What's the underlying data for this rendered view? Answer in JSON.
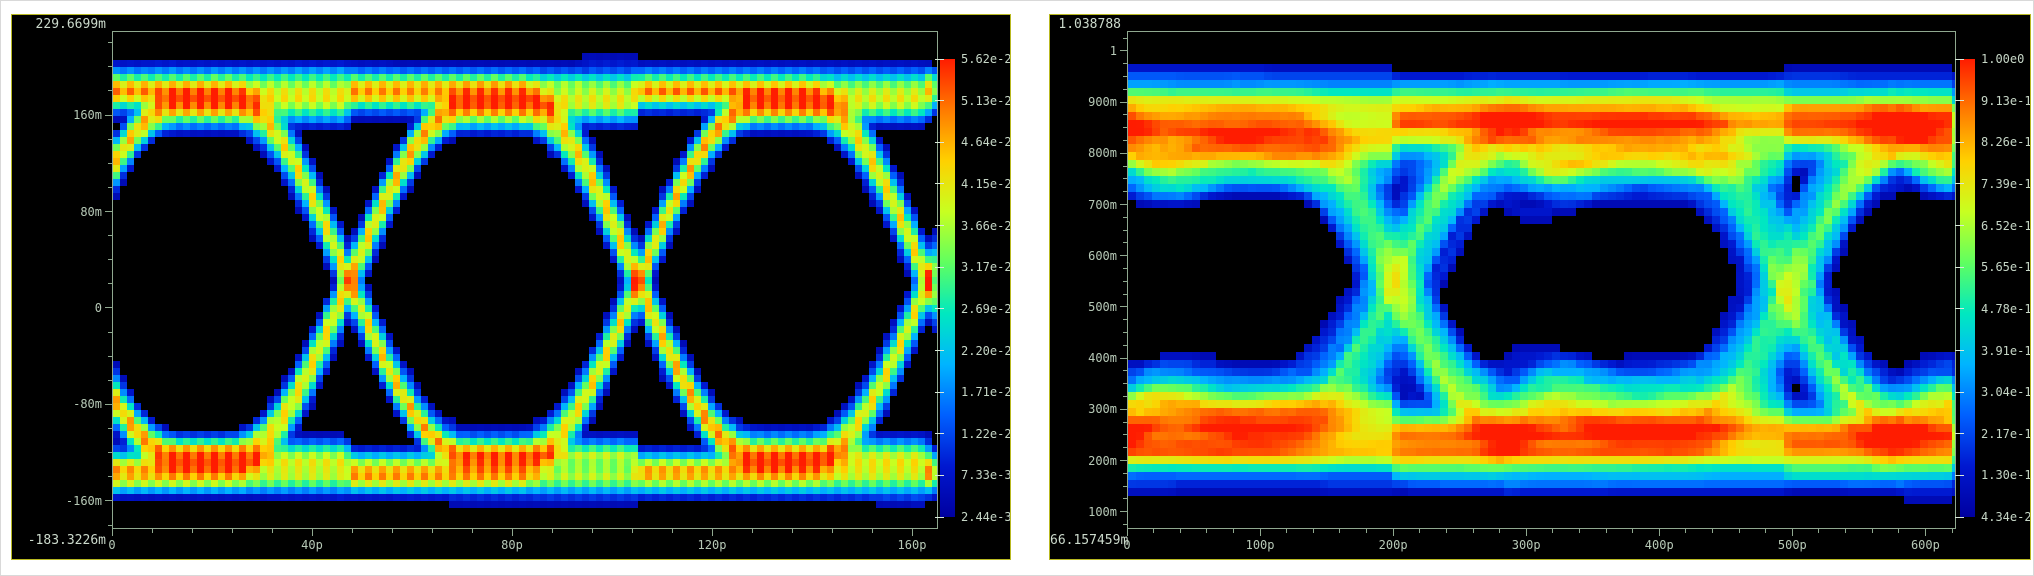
{
  "window": {
    "background": "#ffffff"
  },
  "colors": {
    "page_background": "#ffffff",
    "panel_background": "#000000",
    "panel_border": "#b9b921",
    "axis_color": "#8fa88f",
    "tick_label_color": "#b7c9b7",
    "corner_label_color": "#ccdacc",
    "heatmap_scale": [
      "#ff1c00",
      "#ff7a00",
      "#ffd000",
      "#c8ff20",
      "#60ff60",
      "#00e8c0",
      "#00b4ff",
      "#0060ff",
      "#0018d0",
      "#0000a0"
    ]
  },
  "chart_data": [
    {
      "type": "heatmap",
      "name": "eye-diagram-density-left",
      "description": "Eye diagram density heatmap, jet colormap on black background, two eye openings",
      "x_axis": {
        "unit": "seconds",
        "min_s": 0,
        "max_s": 1.652e-10,
        "tick_labels": [
          "0",
          "40p",
          "80p",
          "120p",
          "160p"
        ],
        "tick_values_s": [
          0,
          4e-11,
          8e-11,
          1.2e-10,
          1.6e-10
        ],
        "minor_step_s": 8e-12
      },
      "y_axis": {
        "unit": "volts",
        "min": -0.1833226,
        "max": 0.2296699,
        "top_label": "229.6699m",
        "bottom_label": "-183.3226m",
        "tick_labels": [
          "160m",
          "80m",
          "0",
          "-80m",
          "-160m"
        ],
        "tick_values": [
          0.16,
          0.08,
          0,
          -0.08,
          -0.16
        ],
        "minor_step": 0.02
      },
      "colorbar": {
        "labels": [
          "5.62e-2",
          "5.13e-2",
          "4.64e-2",
          "4.15e-2",
          "3.66e-2",
          "3.17e-2",
          "2.69e-2",
          "2.20e-2",
          "1.71e-2",
          "1.22e-2",
          "7.33e-3",
          "2.44e-3"
        ],
        "values": [
          0.0562,
          0.0513,
          0.0464,
          0.0415,
          0.0366,
          0.0317,
          0.0269,
          0.022,
          0.0171,
          0.0122,
          0.00733,
          0.00244
        ]
      },
      "eye": {
        "ui_period_s": 5.8e-11,
        "crossing_times_s": [
          4.7e-11,
          1.05e-10
        ],
        "high_level": 0.18,
        "low_level": -0.136
      }
    },
    {
      "type": "heatmap",
      "name": "eye-diagram-density-right",
      "description": "Eye diagram density heatmap, jet colormap on black background, wider blurred eye with red rails",
      "x_axis": {
        "unit": "seconds",
        "min_s": 0,
        "max_s": 6.23e-10,
        "tick_labels": [
          "0",
          "100p",
          "200p",
          "300p",
          "400p",
          "500p",
          "600p"
        ],
        "tick_values_s": [
          0,
          1e-10,
          2e-10,
          3e-10,
          4e-10,
          5e-10,
          6e-10
        ],
        "minor_step_s": 2e-11
      },
      "y_axis": {
        "unit": "volts",
        "min": 0.066157459,
        "max": 1.038788,
        "top_label": "1.038788",
        "bottom_label": "66.157459m",
        "tick_labels": [
          "1",
          "900m",
          "800m",
          "700m",
          "600m",
          "500m",
          "400m",
          "300m",
          "200m",
          "100m"
        ],
        "tick_values": [
          1.0,
          0.9,
          0.8,
          0.7,
          0.6,
          0.5,
          0.4,
          0.3,
          0.2,
          0.1
        ],
        "minor_step": 0.025
      },
      "colorbar": {
        "labels": [
          "1.00e0",
          "9.13e-1",
          "8.26e-1",
          "7.39e-1",
          "6.52e-1",
          "5.65e-1",
          "4.78e-1",
          "3.91e-1",
          "3.04e-1",
          "2.17e-1",
          "1.30e-1",
          "4.34e-2"
        ],
        "values": [
          1.0,
          0.913,
          0.826,
          0.739,
          0.652,
          0.565,
          0.478,
          0.391,
          0.304,
          0.217,
          0.13,
          0.0434
        ]
      },
      "eye": {
        "ui_period_s": 2.95e-10,
        "crossing_times_s": [
          2e-10,
          4.95e-10
        ],
        "high_level": 0.86,
        "low_level": 0.24
      }
    }
  ]
}
